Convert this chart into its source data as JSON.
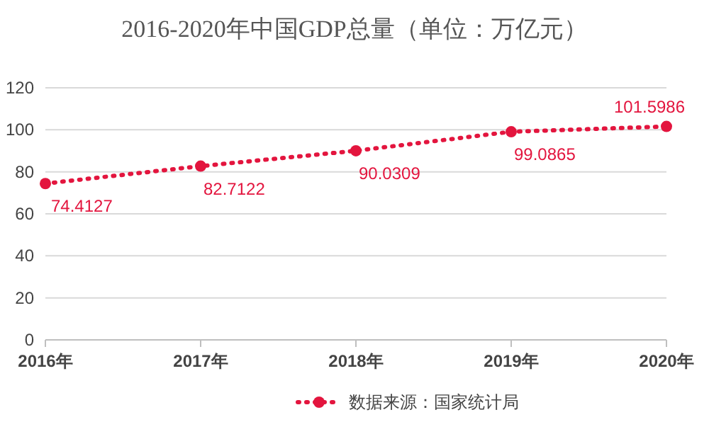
{
  "chart_data": {
    "type": "line",
    "title": "2016-2020年中国GDP总量（单位：万亿元）",
    "categories": [
      "2016年",
      "2017年",
      "2018年",
      "2019年",
      "2020年"
    ],
    "series": [
      {
        "name": "数据来源：国家统计局",
        "color": "#e3153e",
        "values": [
          74.4127,
          82.7122,
          90.0309,
          99.0865,
          101.5986
        ]
      }
    ],
    "ylim": [
      0,
      120
    ],
    "yticks": [
      0,
      20,
      40,
      60,
      80,
      100,
      120
    ],
    "grid": "y",
    "legend": "bottom",
    "marker": "circle",
    "line_style": "dotted",
    "data_labels": true
  }
}
